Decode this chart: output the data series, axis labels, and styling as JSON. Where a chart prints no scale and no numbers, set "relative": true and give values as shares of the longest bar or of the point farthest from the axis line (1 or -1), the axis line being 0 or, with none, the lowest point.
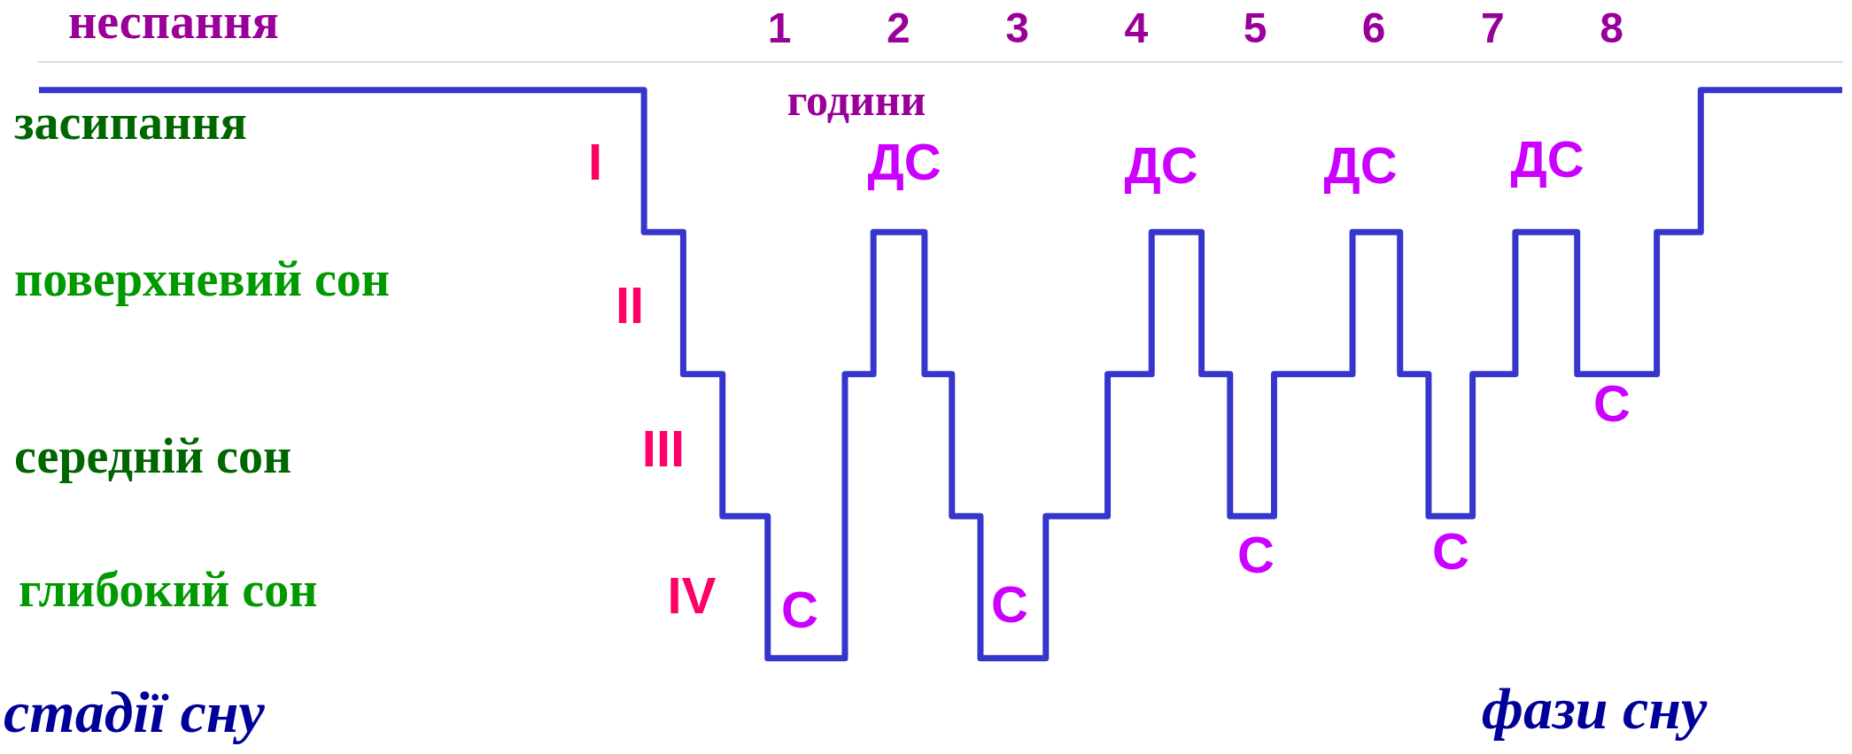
{
  "chart_data": {
    "type": "step",
    "xlabel": "години",
    "relative": true,
    "x": [
      -5.23,
      -0.14,
      0.19,
      0.52,
      0.9,
      1.55,
      1.79,
      2.22,
      2.45,
      2.69,
      3.24,
      3.76,
      4.13,
      4.55,
      4.79,
      5.16,
      5.82,
      6.22,
      6.46,
      6.83,
      7.19,
      7.71,
      8.38,
      8.75,
      9.94
    ],
    "series": [
      {
        "color": "#3636cc",
        "values": [
          1,
          0.75,
          0.5,
          0.25,
          0,
          0.5,
          0.75,
          0.5,
          0.25,
          0,
          0.25,
          0.5,
          0.75,
          0.5,
          0.25,
          0.5,
          0.75,
          0.5,
          0.25,
          0.5,
          0.75,
          0.5,
          0.75,
          1,
          1
        ]
      }
    ],
    "xlim": [
      -5.23,
      9.94
    ],
    "xticks": [
      1,
      2,
      3,
      4,
      5,
      6,
      7,
      8
    ],
    "annotations": [
      "неспання",
      "засипання",
      "поверхневий сон",
      "середній сон",
      "глибокий сон",
      "I",
      "II",
      "III",
      "IV",
      "ДС",
      "ДС",
      "ДС",
      "ДС",
      "С",
      "С",
      "С",
      "С",
      "С",
      "стадії сну",
      "фази сну"
    ],
    "grid": false,
    "legend": false,
    "marker": "none",
    "line_style": "solid"
  }
}
